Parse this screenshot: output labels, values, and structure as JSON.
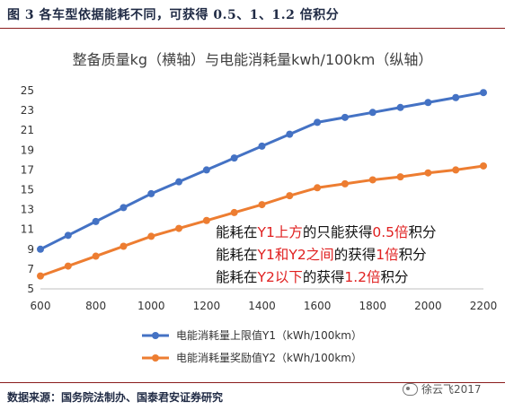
{
  "figure_caption": "图 3 各车型依据能耗不同，可获得 0.5、1、1.2 倍积分",
  "source_note": "数据来源：国务院法制办、国泰君安证券研究",
  "watermark": "徐云飞2017",
  "chart_data": {
    "type": "line",
    "title": "整备质量kg（横轴）与电能消耗量kwh/100km（纵轴）",
    "xlabel": "",
    "ylabel": "",
    "x": [
      600,
      700,
      800,
      900,
      1000,
      1100,
      1200,
      1300,
      1400,
      1500,
      1600,
      1700,
      1800,
      1900,
      2000,
      2100,
      2200
    ],
    "xlim": [
      600,
      2200
    ],
    "ylim": [
      5,
      25
    ],
    "xticks": [
      600,
      800,
      1000,
      1200,
      1400,
      1600,
      1800,
      2000,
      2200
    ],
    "yticks": [
      5,
      7,
      9,
      11,
      13,
      15,
      17,
      19,
      21,
      23,
      25
    ],
    "grid": false,
    "legend_position": "bottom",
    "series": [
      {
        "name": "电能消耗量上限值Y1（kWh/100km）",
        "color": "#4472c4",
        "values": [
          9.0,
          10.4,
          11.8,
          13.2,
          14.6,
          15.8,
          17.0,
          18.2,
          19.4,
          20.6,
          21.8,
          22.3,
          22.8,
          23.3,
          23.8,
          24.3,
          24.8
        ]
      },
      {
        "name": "电能消耗量奖励值Y2（kWh/100km）",
        "color": "#ed7d31",
        "values": [
          6.3,
          7.3,
          8.3,
          9.3,
          10.3,
          11.1,
          11.9,
          12.7,
          13.5,
          14.4,
          15.2,
          15.6,
          16.0,
          16.3,
          16.7,
          17.0,
          17.4
        ]
      }
    ],
    "annotations": [
      {
        "parts": [
          {
            "text": "能耗在",
            "highlight": false
          },
          {
            "text": "Y1上方",
            "highlight": true
          },
          {
            "text": "的只能获得",
            "highlight": false
          },
          {
            "text": "0.5倍",
            "highlight": true
          },
          {
            "text": "积分",
            "highlight": false
          }
        ]
      },
      {
        "parts": [
          {
            "text": "能耗在",
            "highlight": false
          },
          {
            "text": "Y1和Y2之间",
            "highlight": true
          },
          {
            "text": "的获得",
            "highlight": false
          },
          {
            "text": "1倍",
            "highlight": true
          },
          {
            "text": "积分",
            "highlight": false
          }
        ]
      },
      {
        "parts": [
          {
            "text": "能耗在",
            "highlight": false
          },
          {
            "text": "Y2以下",
            "highlight": true
          },
          {
            "text": "的获得",
            "highlight": false
          },
          {
            "text": "1.2倍",
            "highlight": true
          },
          {
            "text": "积分",
            "highlight": false
          }
        ]
      }
    ],
    "annotation_colors": {
      "normal": "#111111",
      "highlight": "#e02020"
    }
  }
}
